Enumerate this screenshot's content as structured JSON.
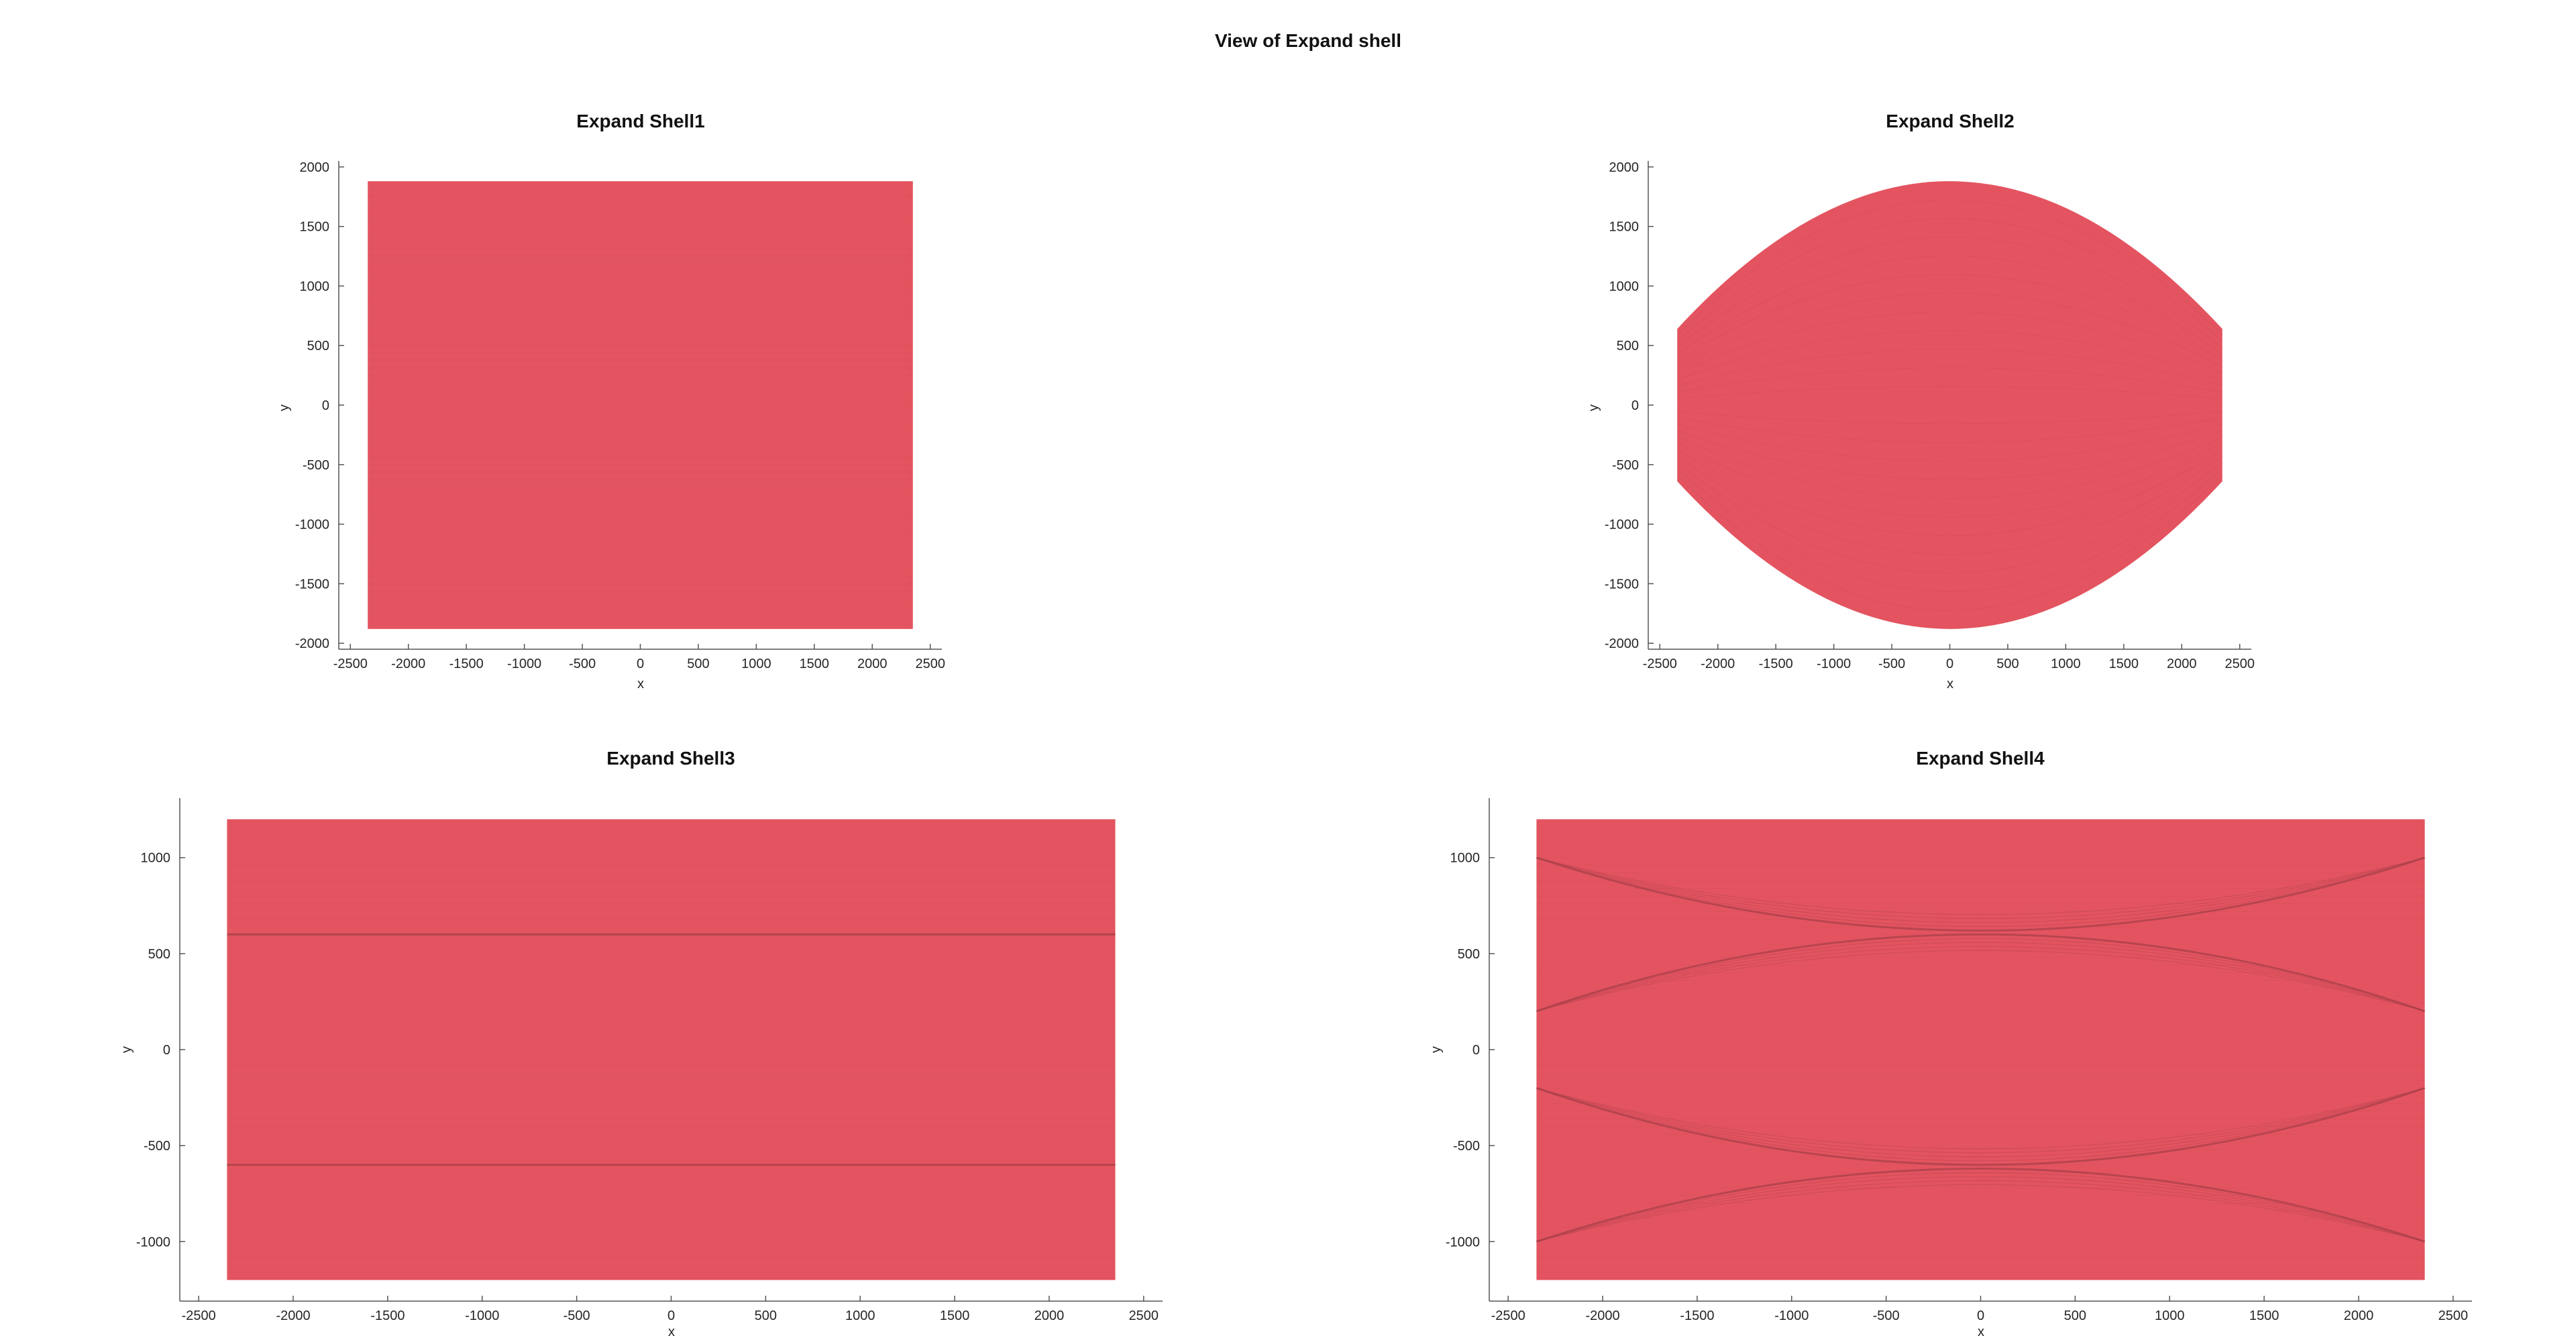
{
  "figure_title": "View of Expand shell",
  "colors": {
    "face": "#e35460",
    "edge": "#c84a55",
    "axis": "#555555"
  },
  "chart_data": [
    {
      "type": "area",
      "title": "Expand Shell1",
      "xlabel": "x",
      "ylabel": "y",
      "xlim": [
        -2600,
        2600
      ],
      "ylim": [
        -2050,
        2050
      ],
      "xticks": [
        -2500,
        -2000,
        -1500,
        -1000,
        -500,
        0,
        500,
        1000,
        1500,
        2000,
        2500
      ],
      "yticks": [
        -2000,
        -1500,
        -1000,
        -500,
        0,
        500,
        1000,
        1500,
        2000
      ],
      "shape": "rectangle",
      "x_range": [
        -2350,
        2350
      ],
      "y_range": [
        -1880,
        1880
      ]
    },
    {
      "type": "area",
      "title": "Expand Shell2",
      "xlabel": "x",
      "ylabel": "y",
      "xlim": [
        -2600,
        2600
      ],
      "ylim": [
        -2050,
        2050
      ],
      "xticks": [
        -2500,
        -2000,
        -1500,
        -1000,
        -500,
        0,
        500,
        1000,
        1500,
        2000,
        2500
      ],
      "yticks": [
        -2000,
        -1500,
        -1000,
        -500,
        0,
        500,
        1000,
        1500,
        2000
      ],
      "shape": "barrel",
      "x_range": [
        -2350,
        2350
      ],
      "y_peak": 1880,
      "y_edge": 640
    },
    {
      "type": "area",
      "title": "Expand Shell3",
      "xlabel": "x",
      "ylabel": "y",
      "xlim": [
        -2600,
        2600
      ],
      "ylim": [
        -1310,
        1310
      ],
      "xticks": [
        -2500,
        -2000,
        -1500,
        -1000,
        -500,
        0,
        500,
        1000,
        1500,
        2000,
        2500
      ],
      "yticks": [
        -1000,
        -500,
        0,
        500,
        1000
      ],
      "shape": "rectangle",
      "x_range": [
        -2350,
        2350
      ],
      "y_range": [
        -1200,
        1200
      ],
      "seams_y": [
        600,
        -600
      ]
    },
    {
      "type": "area",
      "title": "Expand Shell4",
      "xlabel": "x",
      "ylabel": "y",
      "xlim": [
        -2600,
        2600
      ],
      "ylim": [
        -1310,
        1310
      ],
      "xticks": [
        -2500,
        -2000,
        -1500,
        -1000,
        -500,
        0,
        500,
        1000,
        1500,
        2000,
        2500
      ],
      "yticks": [
        -1000,
        -500,
        0,
        500,
        1000
      ],
      "shape": "rectangle",
      "x_range": [
        -2350,
        2350
      ],
      "y_range": [
        -1200,
        1200
      ],
      "arcs": [
        {
          "y_edge": 1000,
          "y_mid": 620
        },
        {
          "y_edge": 200,
          "y_mid": 600
        },
        {
          "y_edge": -200,
          "y_mid": -600
        },
        {
          "y_edge": -1000,
          "y_mid": -620
        }
      ]
    }
  ]
}
